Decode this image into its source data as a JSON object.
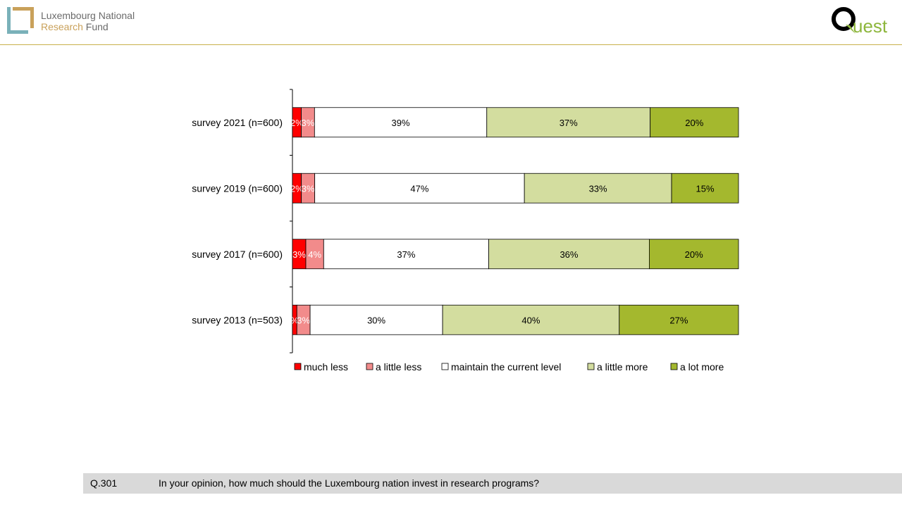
{
  "header": {
    "brand_line1": "Luxembourg National",
    "brand_line2_accent": "Research",
    "brand_line2_rest": " Fund",
    "quest_logo_text": "Quest",
    "logo_colors": {
      "lnr_teal": "#7ab1b9",
      "lnr_gold": "#c9a15a",
      "quest_green": "#8db63c",
      "rule": "#c8b04a"
    }
  },
  "chart_data": {
    "type": "bar",
    "orientation": "horizontal",
    "stacked": true,
    "percent": true,
    "categories": [
      "survey 2021 (n=600)",
      "survey 2019 (n=600)",
      "survey 2017 (n=600)",
      "survey 2013 (n=503)"
    ],
    "series": [
      {
        "name": "much less",
        "color": "#ff0000",
        "values": [
          2,
          2,
          3,
          1
        ],
        "labels": [
          "2%",
          "2%",
          "3%",
          "%"
        ],
        "label_color": "#ffffff"
      },
      {
        "name": "a little less",
        "color": "#f28b8b",
        "values": [
          3,
          3,
          4,
          3
        ],
        "labels": [
          "3%",
          "3%",
          "4%",
          "3%"
        ],
        "label_color": "#ffffff"
      },
      {
        "name": "maintain the current level",
        "color": "#ffffff",
        "values": [
          39,
          47,
          37,
          30
        ],
        "labels": [
          "39%",
          "47%",
          "37%",
          "30%"
        ],
        "label_color": "#000000"
      },
      {
        "name": "a little more",
        "color": "#d3dd9f",
        "values": [
          37,
          33,
          36,
          40
        ],
        "labels": [
          "37%",
          "33%",
          "36%",
          "40%"
        ],
        "label_color": "#000000"
      },
      {
        "name": "a lot more",
        "color": "#a4b82e",
        "values": [
          20,
          15,
          20,
          27
        ],
        "labels": [
          "20%",
          "15%",
          "20%",
          "27%"
        ],
        "label_color": "#000000"
      }
    ],
    "xlim": [
      0,
      100
    ],
    "legend_position": "bottom",
    "grid": false
  },
  "footer": {
    "question_code": "Q.301",
    "question_text": "In your opinion, how much should the Luxembourg nation invest in research programs?"
  }
}
